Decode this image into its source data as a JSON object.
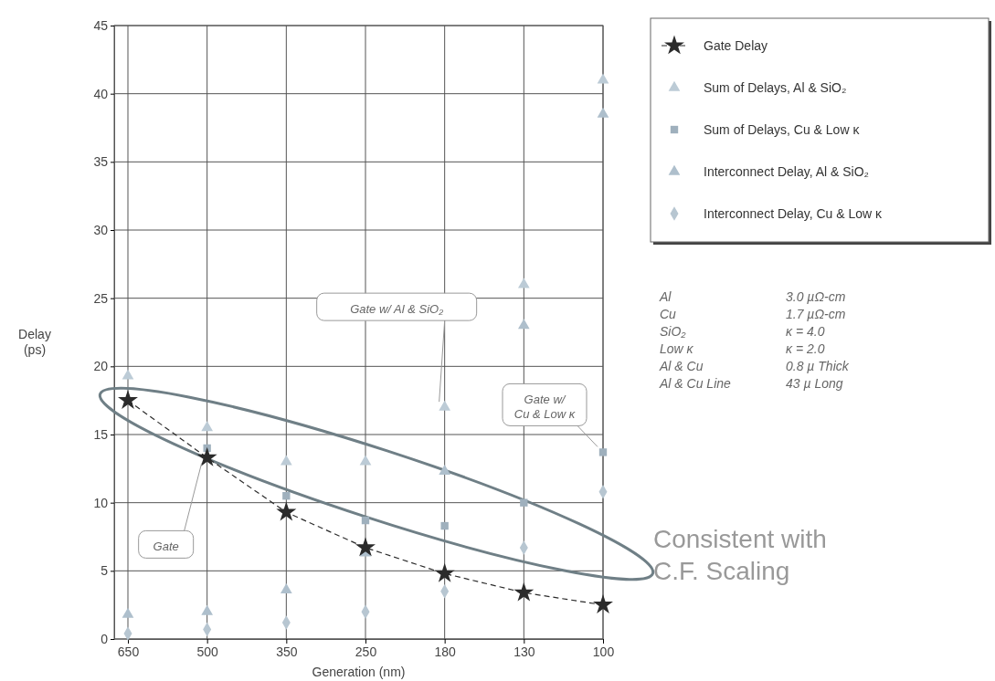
{
  "chart_data": {
    "type": "line",
    "xlabel": "Generation (nm)",
    "ylabel": "Delay (ps)",
    "categories": [
      "650",
      "500",
      "350",
      "250",
      "180",
      "130",
      "100"
    ],
    "ylim": [
      0,
      45
    ],
    "yticks": [
      0,
      5,
      10,
      15,
      20,
      25,
      30,
      35,
      40,
      45
    ],
    "grid": true,
    "legend": "top right",
    "series": [
      {
        "name": "Gate Delay",
        "color": "#2b2b2b",
        "marker": "star",
        "line_style": "dashed",
        "values": [
          17.5,
          13.3,
          9.3,
          6.7,
          4.8,
          3.4,
          2.5
        ]
      },
      {
        "name": "Sum of Delays, Al & SiO₂",
        "type": "scatter",
        "color": "#bccbd6",
        "marker": "triangle",
        "values": [
          19.3,
          15.5,
          13,
          13,
          17,
          26,
          41
        ]
      },
      {
        "name": "Sum of Delays, Cu & Low κ",
        "type": "scatter",
        "color": "#9fb0bd",
        "marker": "square",
        "values": [
          null,
          14,
          10.5,
          8.7,
          8.3,
          10,
          13.7
        ]
      },
      {
        "name": "Interconnect Delay, Al & SiO₂",
        "type": "scatter",
        "color": "#aebfcc",
        "marker": "triangle",
        "values": [
          1.8,
          2,
          3.6,
          6.3,
          12.3,
          23,
          38.5
        ]
      },
      {
        "name": "Interconnect Delay, Cu & Low κ",
        "type": "scatter",
        "color": "#b7c6d1",
        "marker": "diamond",
        "values": [
          0.4,
          0.7,
          1.2,
          2,
          3.5,
          6.7,
          10.8
        ]
      }
    ],
    "annotations": [
      {
        "text": "Gate w/ Al & SiO₂",
        "x": "180",
        "y": 17
      },
      {
        "text": "Gate w/ Cu & Low κ",
        "x": "100",
        "y": 13.7
      },
      {
        "text": "Gate",
        "x": "500",
        "y": 13.3
      },
      "Al",
      "3.0 µΩ-cm",
      "Cu",
      "1.7 µΩ-cm",
      "SiO₂",
      "κ = 4.0",
      "Low κ",
      "κ = 2.0",
      "Al & Cu",
      "0.8 µ Thick",
      "Al & Cu Line",
      "43 µ Long",
      "Consistent with C.F. Scaling"
    ]
  }
}
